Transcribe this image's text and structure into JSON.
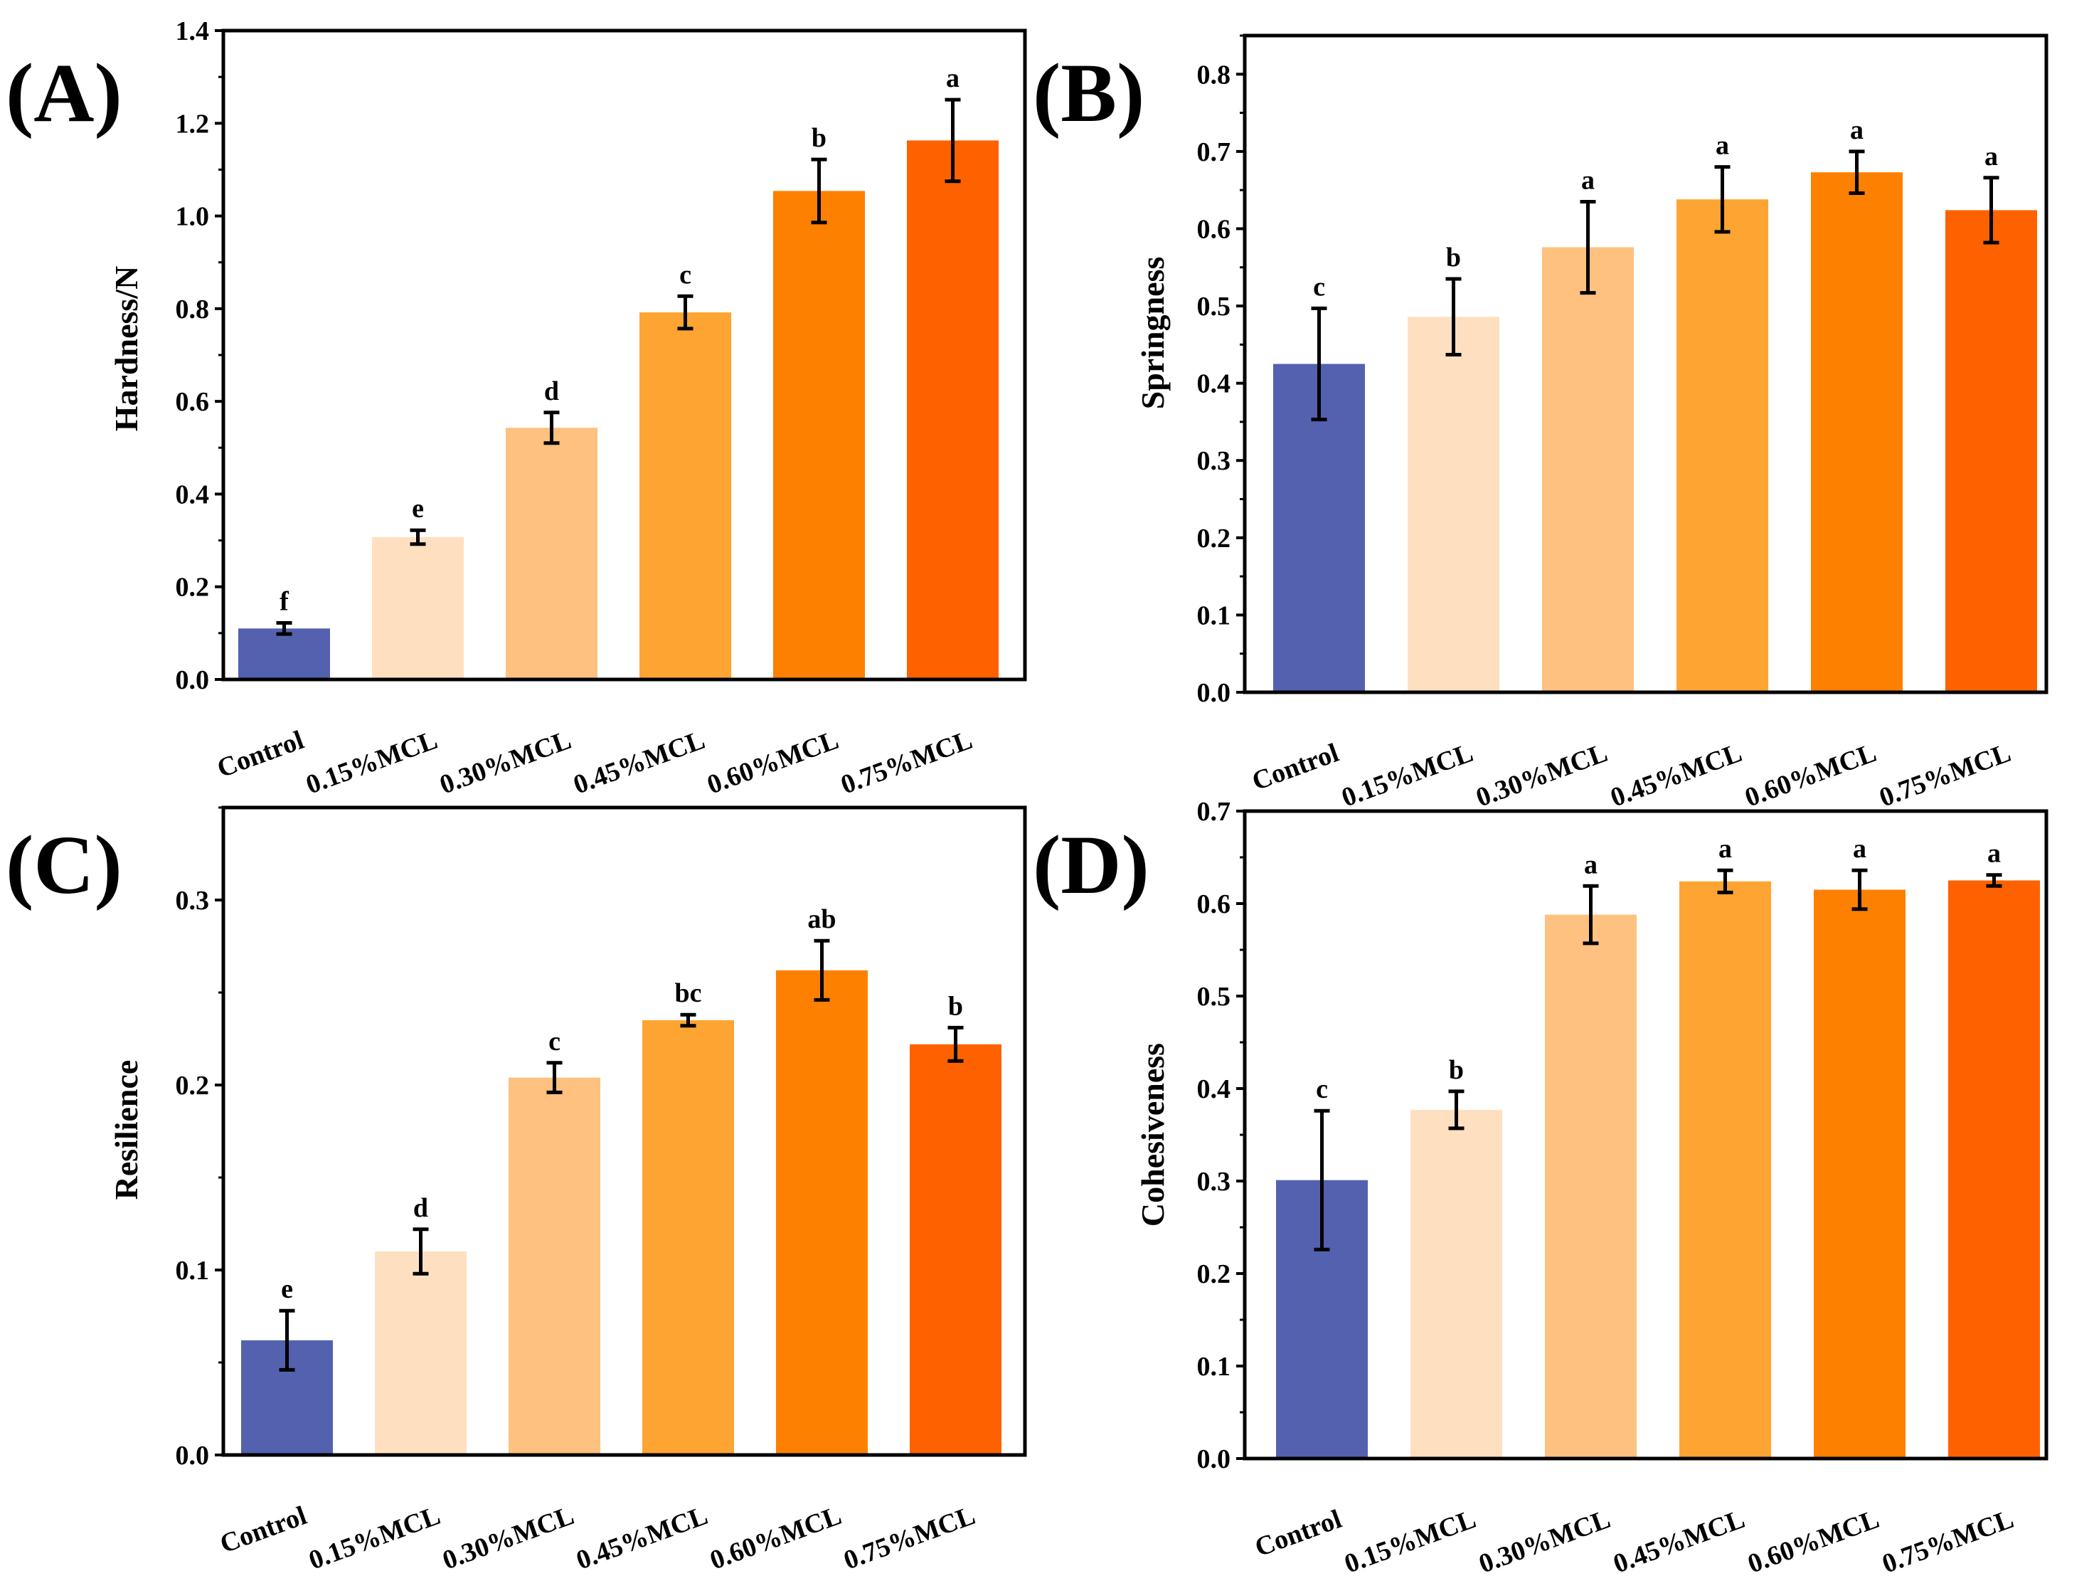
{
  "colors": [
    "#5461ae",
    "#fee0c0",
    "#fec17f",
    "#fea432",
    "#fe8000",
    "#fe6200"
  ],
  "chart_data": [
    {
      "type": "bar",
      "panel": "(A)",
      "ylabel": "Hardness/N",
      "categories": [
        "Control",
        "0.15%MCL",
        "0.30%MCL",
        "0.45%MCL",
        "0.60%MCL",
        "0.75%MCL"
      ],
      "values": [
        0.11,
        0.307,
        0.543,
        0.792,
        1.054,
        1.163
      ],
      "errors": [
        0.012,
        0.015,
        0.033,
        0.035,
        0.068,
        0.088
      ],
      "letters": [
        "f",
        "e",
        "d",
        "c",
        "b",
        "a"
      ],
      "ylim": [
        0,
        1.4
      ],
      "yticks": [
        0.0,
        0.2,
        0.4,
        0.6,
        0.8,
        1.0,
        1.2,
        1.4
      ],
      "ytick_labels": [
        "0.0",
        "0.2",
        "0.4",
        "0.6",
        "0.8",
        "1.0",
        "1.2",
        "1.4"
      ]
    },
    {
      "type": "bar",
      "panel": "(B)",
      "ylabel": "Springness",
      "categories": [
        "Control",
        "0.15%MCL",
        "0.30%MCL",
        "0.45%MCL",
        "0.60%MCL",
        "0.75%MCL"
      ],
      "values": [
        0.425,
        0.486,
        0.576,
        0.638,
        0.673,
        0.624
      ],
      "errors": [
        0.072,
        0.049,
        0.059,
        0.042,
        0.027,
        0.042
      ],
      "letters": [
        "c",
        "b",
        "a",
        "a",
        "a",
        "a"
      ],
      "ylim": [
        0,
        0.85
      ],
      "yticks": [
        0.0,
        0.1,
        0.2,
        0.3,
        0.4,
        0.5,
        0.6,
        0.7,
        0.8
      ],
      "ytick_labels": [
        "0.0",
        "0.1",
        "0.2",
        "0.3",
        "0.4",
        "0.5",
        "0.6",
        "0.7",
        "0.8"
      ]
    },
    {
      "type": "bar",
      "panel": "(C)",
      "ylabel": "Resilience",
      "categories": [
        "Control",
        "0.15%MCL",
        "0.30%MCL",
        "0.45%MCL",
        "0.60%MCL",
        "0.75%MCL"
      ],
      "values": [
        0.062,
        0.11,
        0.204,
        0.235,
        0.262,
        0.222
      ],
      "errors": [
        0.016,
        0.012,
        0.008,
        0.003,
        0.016,
        0.009
      ],
      "letters": [
        "e",
        "d",
        "c",
        "bc",
        "ab",
        "b"
      ],
      "ylim": [
        0,
        0.35
      ],
      "yticks": [
        0.0,
        0.1,
        0.2,
        0.3
      ],
      "ytick_labels": [
        "0.0",
        "0.1",
        "0.2",
        "0.3"
      ]
    },
    {
      "type": "bar",
      "panel": "(D)",
      "ylabel": "Cohesiveness",
      "categories": [
        "Control",
        "0.15%MCL",
        "0.30%MCL",
        "0.45%MCL",
        "0.60%MCL",
        "0.75%MCL"
      ],
      "values": [
        0.301,
        0.377,
        0.588,
        0.624,
        0.615,
        0.625
      ],
      "errors": [
        0.075,
        0.02,
        0.031,
        0.012,
        0.021,
        0.006
      ],
      "letters": [
        "c",
        "b",
        "a",
        "a",
        "a",
        "a"
      ],
      "ylim": [
        0,
        0.7
      ],
      "yticks": [
        0.0,
        0.1,
        0.2,
        0.3,
        0.4,
        0.5,
        0.6,
        0.7
      ],
      "ytick_labels": [
        "0.0",
        "0.1",
        "0.2",
        "0.3",
        "0.4",
        "0.5",
        "0.6",
        "0.7"
      ]
    }
  ]
}
